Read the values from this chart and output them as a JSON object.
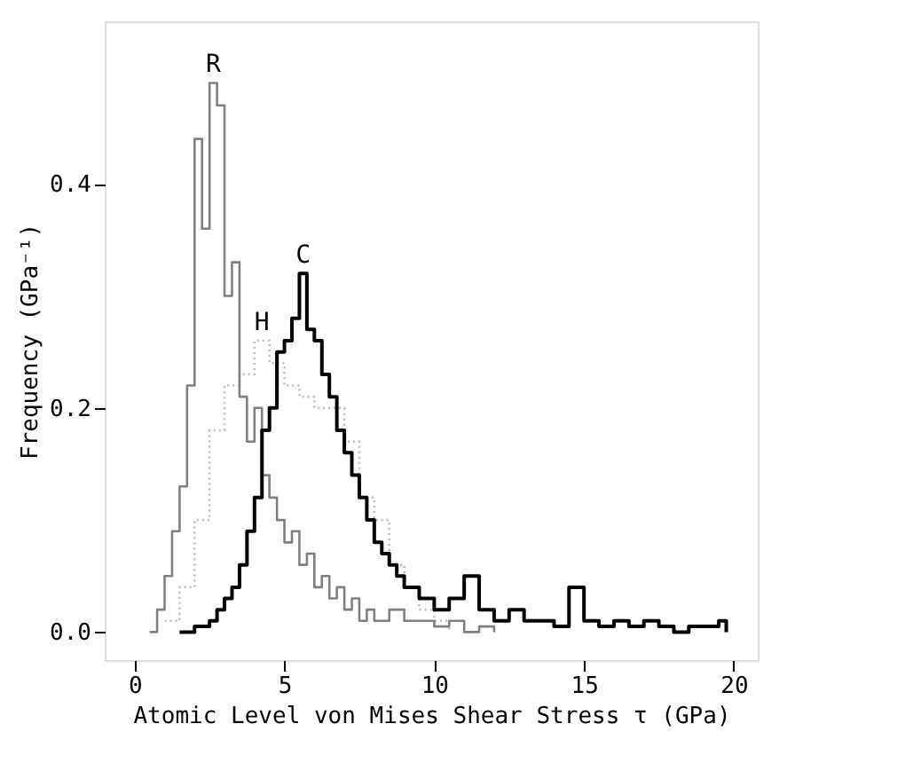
{
  "chart_data": {
    "type": "step",
    "xlabel": "Atomic Level von Mises Shear Stress τ (GPa)",
    "ylabel": "Frequency (GPa⁻¹)",
    "xlim": [
      -1.0,
      20.8
    ],
    "ylim": [
      -0.025,
      0.545
    ],
    "xticks": [
      0,
      5,
      10,
      15,
      20
    ],
    "yticks": [
      {
        "value": 0,
        "label": "0.0"
      },
      {
        "value": 0.2,
        "label": "0.2"
      },
      {
        "value": 0.4,
        "label": "0.4"
      }
    ],
    "grid": false,
    "marker": "none",
    "series": [
      {
        "name": "H",
        "color": "#bbbbbb",
        "line_style": "dotted",
        "x": [
          1.0,
          1.5,
          2.0,
          2.5,
          3.0,
          3.5,
          4.0,
          4.5,
          5.0,
          5.5,
          6.0,
          6.5,
          7.0,
          7.5,
          8.0,
          8.5,
          9.0,
          9.5,
          10.0,
          10.5
        ],
        "values": [
          0.01,
          0.04,
          0.1,
          0.18,
          0.22,
          0.23,
          0.26,
          0.24,
          0.22,
          0.21,
          0.2,
          0.2,
          0.17,
          0.12,
          0.1,
          0.06,
          0.04,
          0.02,
          0.01,
          0.0
        ]
      },
      {
        "name": "R",
        "color": "#808080",
        "line_style": "solid",
        "x": [
          0.5,
          0.75,
          1.0,
          1.25,
          1.5,
          1.75,
          2.0,
          2.25,
          2.5,
          2.75,
          3.0,
          3.25,
          3.5,
          3.75,
          4.0,
          4.25,
          4.5,
          4.75,
          5.0,
          5.25,
          5.5,
          5.75,
          6.0,
          6.25,
          6.5,
          6.75,
          7.0,
          7.25,
          7.5,
          7.75,
          8.0,
          8.5,
          9.0,
          9.5,
          10.0,
          10.5,
          11.0,
          11.5,
          12.0
        ],
        "values": [
          0.0,
          0.02,
          0.05,
          0.09,
          0.13,
          0.22,
          0.44,
          0.36,
          0.49,
          0.47,
          0.3,
          0.33,
          0.21,
          0.17,
          0.2,
          0.14,
          0.12,
          0.1,
          0.08,
          0.09,
          0.06,
          0.07,
          0.04,
          0.05,
          0.03,
          0.04,
          0.02,
          0.03,
          0.01,
          0.02,
          0.01,
          0.02,
          0.01,
          0.01,
          0.005,
          0.01,
          0.0,
          0.005,
          0.0
        ]
      },
      {
        "name": "C",
        "color": "#000000",
        "line_style": "solid",
        "x": [
          1.5,
          2.0,
          2.5,
          2.75,
          3.0,
          3.25,
          3.5,
          3.75,
          4.0,
          4.25,
          4.5,
          4.75,
          5.0,
          5.25,
          5.5,
          5.75,
          6.0,
          6.25,
          6.5,
          6.75,
          7.0,
          7.25,
          7.5,
          7.75,
          8.0,
          8.25,
          8.5,
          8.75,
          9.0,
          9.5,
          10.0,
          10.5,
          11.0,
          11.5,
          12.0,
          12.5,
          13.0,
          13.5,
          14.0,
          14.5,
          15.0,
          15.5,
          16.0,
          16.5,
          17.0,
          17.5,
          18.0,
          18.5,
          19.0,
          19.5,
          19.75
        ],
        "values": [
          0.0,
          0.005,
          0.01,
          0.02,
          0.03,
          0.04,
          0.06,
          0.09,
          0.12,
          0.18,
          0.2,
          0.25,
          0.26,
          0.28,
          0.32,
          0.27,
          0.26,
          0.23,
          0.21,
          0.18,
          0.16,
          0.14,
          0.12,
          0.1,
          0.08,
          0.07,
          0.06,
          0.05,
          0.04,
          0.03,
          0.02,
          0.03,
          0.05,
          0.02,
          0.01,
          0.02,
          0.01,
          0.01,
          0.005,
          0.04,
          0.01,
          0.005,
          0.01,
          0.005,
          0.01,
          0.005,
          0.0,
          0.005,
          0.005,
          0.01,
          0.0
        ]
      }
    ]
  }
}
